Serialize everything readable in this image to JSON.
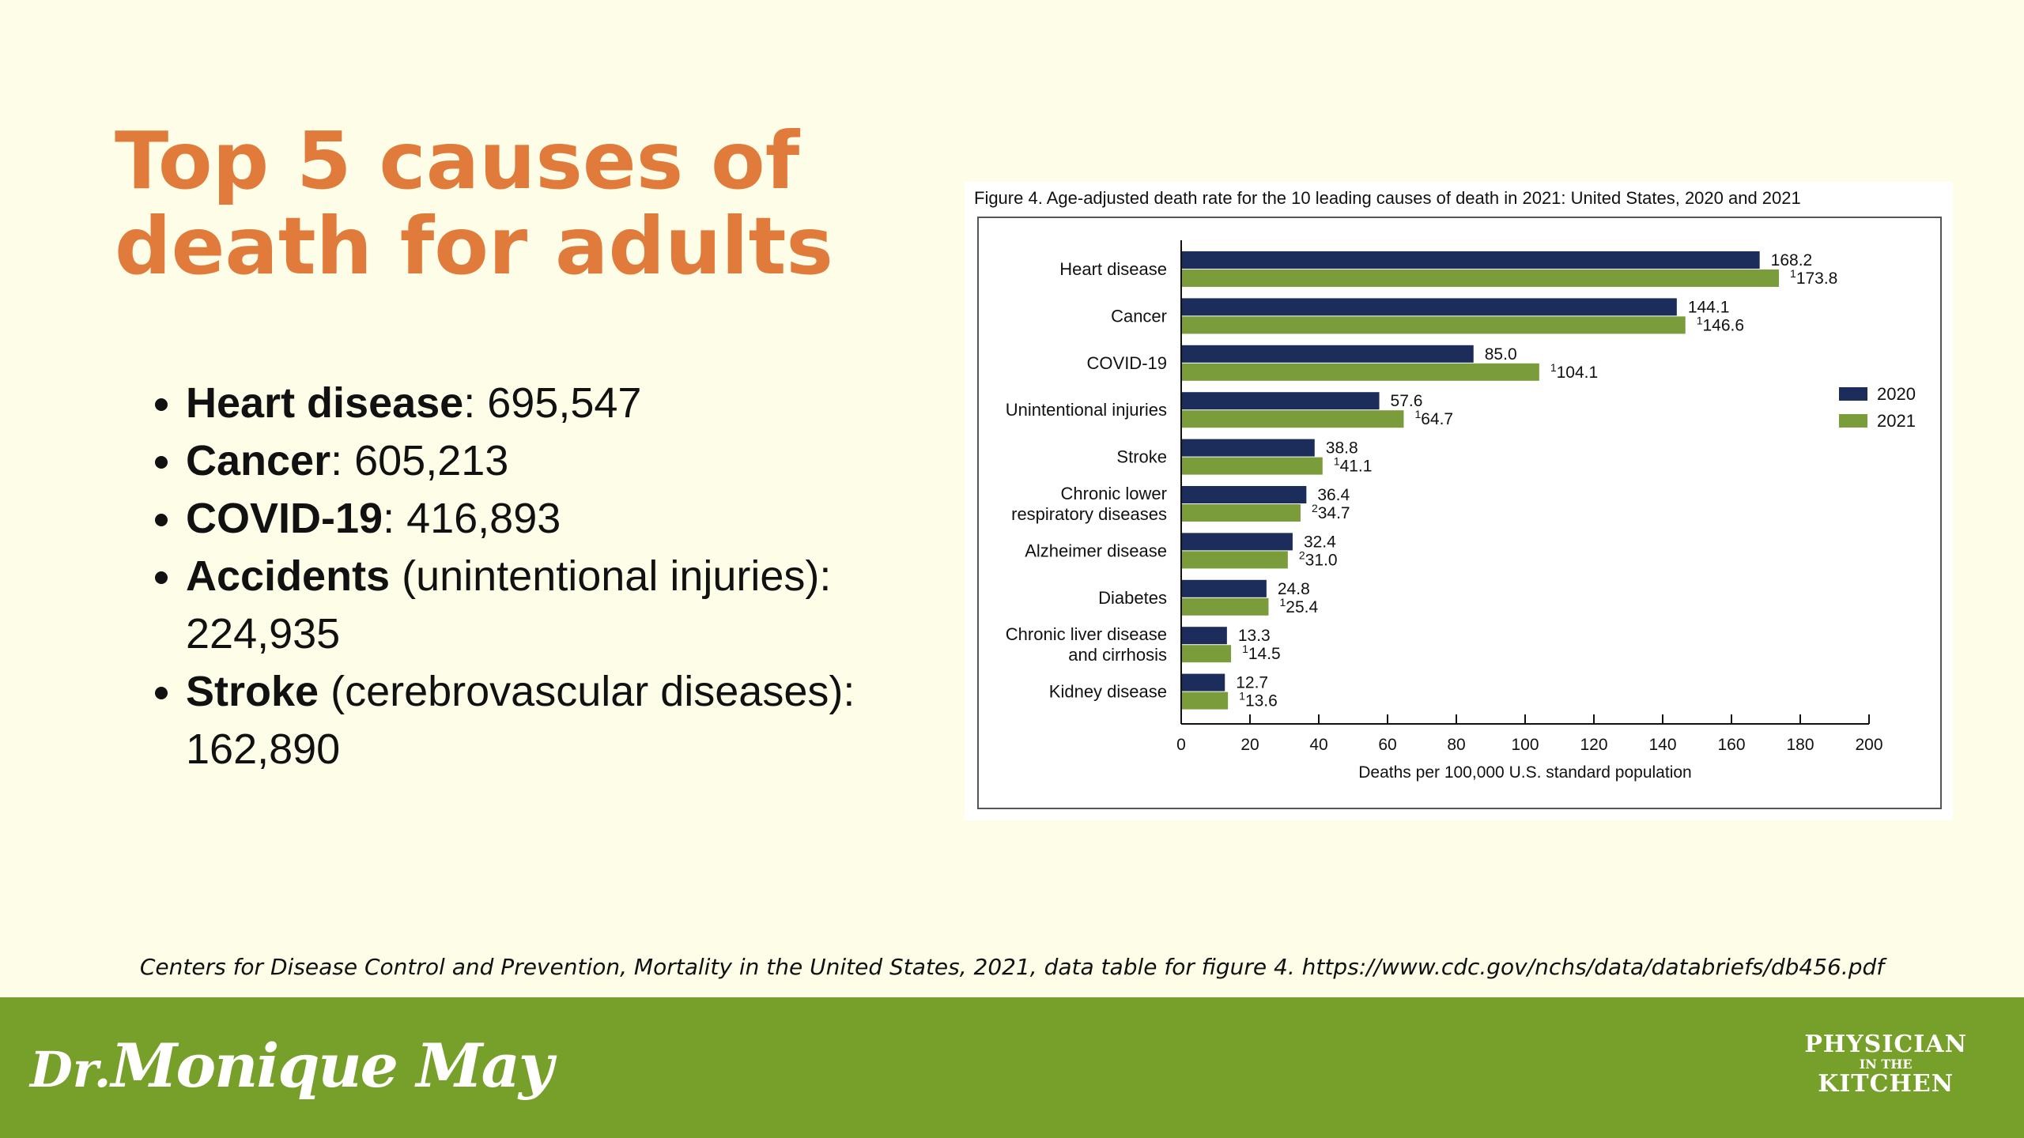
{
  "slide": {
    "title_line1": "Top 5 causes of",
    "title_line2": "death for adults",
    "bullets": [
      {
        "bold": "Heart disease",
        "rest": ": 695,547"
      },
      {
        "bold": "Cancer",
        "rest": ": 605,213"
      },
      {
        "bold": "COVID-19",
        "rest": ": 416,893"
      },
      {
        "bold": "Accidents",
        "rest": " (unintentional injuries): 224,935"
      },
      {
        "bold": "Stroke",
        "rest": " (cerebrovascular diseases): 162,890"
      }
    ],
    "source": "Centers for Disease Control and Prevention, Mortality in the United States, 2021, data table for figure 4. https://www.cdc.gov/nchs/data/databriefs/db456.pdf"
  },
  "footer": {
    "brand_left_prefix": "Dr.",
    "brand_left_name": "Monique May",
    "brand_right_line1": "PHYSICIAN",
    "brand_right_line2": "IN THE",
    "brand_right_line3": "KITCHEN"
  },
  "colors": {
    "title": "#e07b3c",
    "series_2020": "#1c2c5b",
    "series_2021": "#7b9c3a",
    "footer": "#76a02a",
    "background": "#fefde8"
  },
  "chart_data": {
    "type": "bar",
    "orientation": "horizontal",
    "title": "Figure 4. Age-adjusted death rate for the 10 leading causes of death in 2021: United States, 2020 and 2021",
    "xlabel": "Deaths per 100,000 U.S. standard population",
    "ylabel": "",
    "xlim": [
      0,
      200
    ],
    "xticks": [
      0,
      20,
      40,
      60,
      80,
      100,
      120,
      140,
      160,
      180,
      200
    ],
    "legend_position": "right",
    "grid": false,
    "categories": [
      [
        "Heart disease"
      ],
      [
        "Cancer"
      ],
      [
        "COVID-19"
      ],
      [
        "Unintentional injuries"
      ],
      [
        "Stroke"
      ],
      [
        "Chronic lower",
        "respiratory diseases"
      ],
      [
        "Alzheimer disease"
      ],
      [
        "Diabetes"
      ],
      [
        "Chronic liver disease",
        "and cirrhosis"
      ],
      [
        "Kidney disease"
      ]
    ],
    "series": [
      {
        "name": "2020",
        "color": "#1c2c5b",
        "values": [
          168.2,
          144.1,
          85.0,
          57.6,
          38.8,
          36.4,
          32.4,
          24.8,
          13.3,
          12.7
        ],
        "labels": [
          "168.2",
          "144.1",
          "85.0",
          "57.6",
          "38.8",
          "36.4",
          "32.4",
          "24.8",
          "13.3",
          "12.7"
        ],
        "superscripts": [
          "",
          "",
          "",
          "",
          "",
          "",
          "",
          "",
          "",
          ""
        ]
      },
      {
        "name": "2021",
        "color": "#7b9c3a",
        "values": [
          173.8,
          146.6,
          104.1,
          64.7,
          41.1,
          34.7,
          31.0,
          25.4,
          14.5,
          13.6
        ],
        "labels": [
          "173.8",
          "146.6",
          "104.1",
          "64.7",
          "41.1",
          "34.7",
          "31.0",
          "25.4",
          "14.5",
          "13.6"
        ],
        "superscripts": [
          "1",
          "1",
          "1",
          "1",
          "1",
          "2",
          "2",
          "1",
          "1",
          "1"
        ]
      }
    ]
  }
}
